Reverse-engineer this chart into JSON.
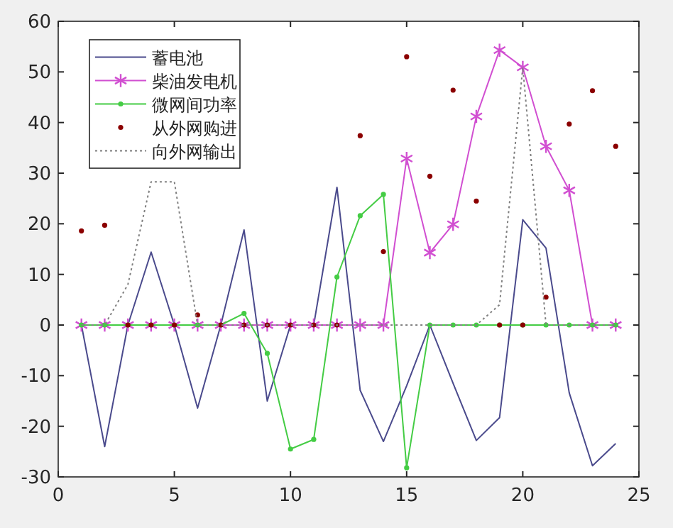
{
  "chart_data": {
    "type": "line",
    "x": [
      1,
      2,
      3,
      4,
      5,
      6,
      7,
      8,
      9,
      10,
      11,
      12,
      13,
      14,
      15,
      16,
      17,
      18,
      19,
      20,
      21,
      22,
      23,
      24
    ],
    "xlim": [
      0,
      25
    ],
    "xticks": [
      0,
      5,
      10,
      15,
      20,
      25
    ],
    "ylim": [
      -30,
      60
    ],
    "yticks": [
      -30,
      -20,
      -10,
      0,
      10,
      20,
      30,
      40,
      50,
      60
    ],
    "grid": false,
    "legend": "top left",
    "series": [
      {
        "name": "蓄电池",
        "color": "#4a4a8c",
        "marker": "none",
        "line_style": "solid",
        "values": [
          0,
          -24,
          0,
          14.4,
          0,
          -16.4,
          0,
          18.8,
          -15,
          0,
          0,
          27.2,
          -12.9,
          -23,
          -12,
          0,
          -11.5,
          -22.8,
          -18.3,
          20.8,
          15.2,
          -13.4,
          -27.8,
          -23.4
        ]
      },
      {
        "name": "柴油发电机",
        "color": "#d14fd1",
        "marker": "cross",
        "line_style": "solid",
        "values": [
          0,
          0,
          0,
          0,
          0,
          0,
          0,
          0,
          0,
          0,
          0,
          0,
          0,
          0,
          32.9,
          14.3,
          19.9,
          41.2,
          54.3,
          50.9,
          35.3,
          26.6,
          0,
          0
        ]
      },
      {
        "name": "微网间功率",
        "color": "#44cc44",
        "marker": "circle",
        "line_style": "solid",
        "values": [
          0,
          0,
          0,
          0,
          0,
          0,
          0,
          2.3,
          -5.6,
          -24.5,
          -22.6,
          9.5,
          21.6,
          25.8,
          -28.2,
          0,
          0,
          0,
          0,
          0,
          0,
          0,
          0,
          0
        ]
      },
      {
        "name": "从外网购进",
        "type": "scatter",
        "color": "#8b0000",
        "marker": "circle",
        "values": [
          18.6,
          19.7,
          0,
          0,
          0,
          2,
          0,
          0,
          0,
          0,
          0,
          0,
          37.4,
          14.5,
          53,
          29.4,
          46.4,
          24.5,
          0,
          0,
          5.5,
          39.7,
          46.3,
          35.3
        ]
      },
      {
        "name": "向外网输出",
        "color": "#808080",
        "marker": "none",
        "line_style": "dotted",
        "values": [
          0,
          0,
          8,
          28.3,
          28.3,
          0,
          0,
          0,
          0,
          0,
          0,
          0,
          0,
          0,
          0,
          0,
          0,
          0,
          4,
          50.9,
          0,
          0,
          0,
          0
        ]
      }
    ]
  }
}
